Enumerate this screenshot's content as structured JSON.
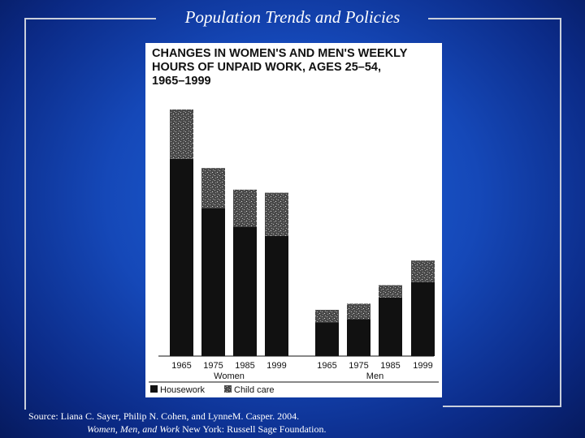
{
  "slide": {
    "title": "Population Trends and Policies",
    "source_prefix": "Source:  Liana C. Sayer, Philip N. Cohen, and LynneM. Casper. 2004.",
    "source_italic": "Women, Men, and Work",
    "source_suffix": "New York: Russell Sage Foundation."
  },
  "chart_data": {
    "type": "bar",
    "stacked": true,
    "title": "Changes in Women's and Men's Weekly Hours of Unpaid Work, Ages 25–54, 1965–1999",
    "title_lines": [
      "CHANGES IN WOMEN'S AND MEN'S WEEKLY",
      "HOURS OF UNPAID WORK, AGES 25–54,",
      "1965–1999"
    ],
    "groups": [
      {
        "name": "Women",
        "categories": [
          "1965",
          "1975",
          "1985",
          "1999"
        ]
      },
      {
        "name": "Men",
        "categories": [
          "1965",
          "1975",
          "1985",
          "1999"
        ]
      }
    ],
    "series": [
      {
        "name": "Housework",
        "color": "#111111",
        "values": [
          32,
          24,
          21,
          19.5,
          5.5,
          6,
          9.5,
          12
        ]
      },
      {
        "name": "Child care",
        "color": "#555555",
        "values": [
          8,
          6.5,
          6,
          7,
          2,
          2.5,
          2,
          3.5
        ]
      }
    ],
    "ylim": [
      0,
      40
    ],
    "xlabel": "",
    "ylabel": "",
    "legend": [
      "Housework",
      "Child care"
    ],
    "legend_position": "bottom-left"
  }
}
